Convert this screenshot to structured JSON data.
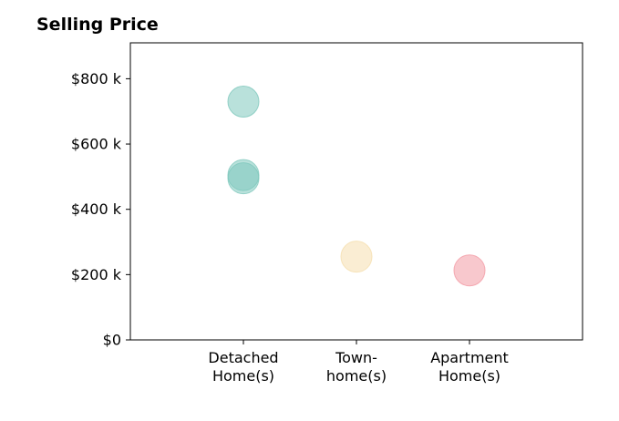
{
  "chart_data": {
    "type": "scatter",
    "title": "Selling Price",
    "xlabel": "",
    "ylabel": "",
    "categories": [
      [
        "Detached",
        "Home(s)"
      ],
      [
        "Town-",
        "home(s)"
      ],
      [
        "Apartment",
        "Home(s)"
      ]
    ],
    "y_ticks": [
      {
        "value": 0,
        "label": "$0"
      },
      {
        "value": 200,
        "label": "$200 k"
      },
      {
        "value": 400,
        "label": "$400 k"
      },
      {
        "value": 600,
        "label": "$600 k"
      },
      {
        "value": 800,
        "label": "$800 k"
      }
    ],
    "ylim": [
      0,
      910
    ],
    "xlim": [
      -1,
      3
    ],
    "grid": false,
    "series": [
      {
        "category_index": 0,
        "color": "#7fc8bd",
        "values": [
          730,
          505,
          495
        ]
      },
      {
        "category_index": 1,
        "color": "#f5dfae",
        "values": [
          255
        ]
      },
      {
        "category_index": 2,
        "color": "#f39aa4",
        "values": [
          213
        ]
      }
    ]
  }
}
